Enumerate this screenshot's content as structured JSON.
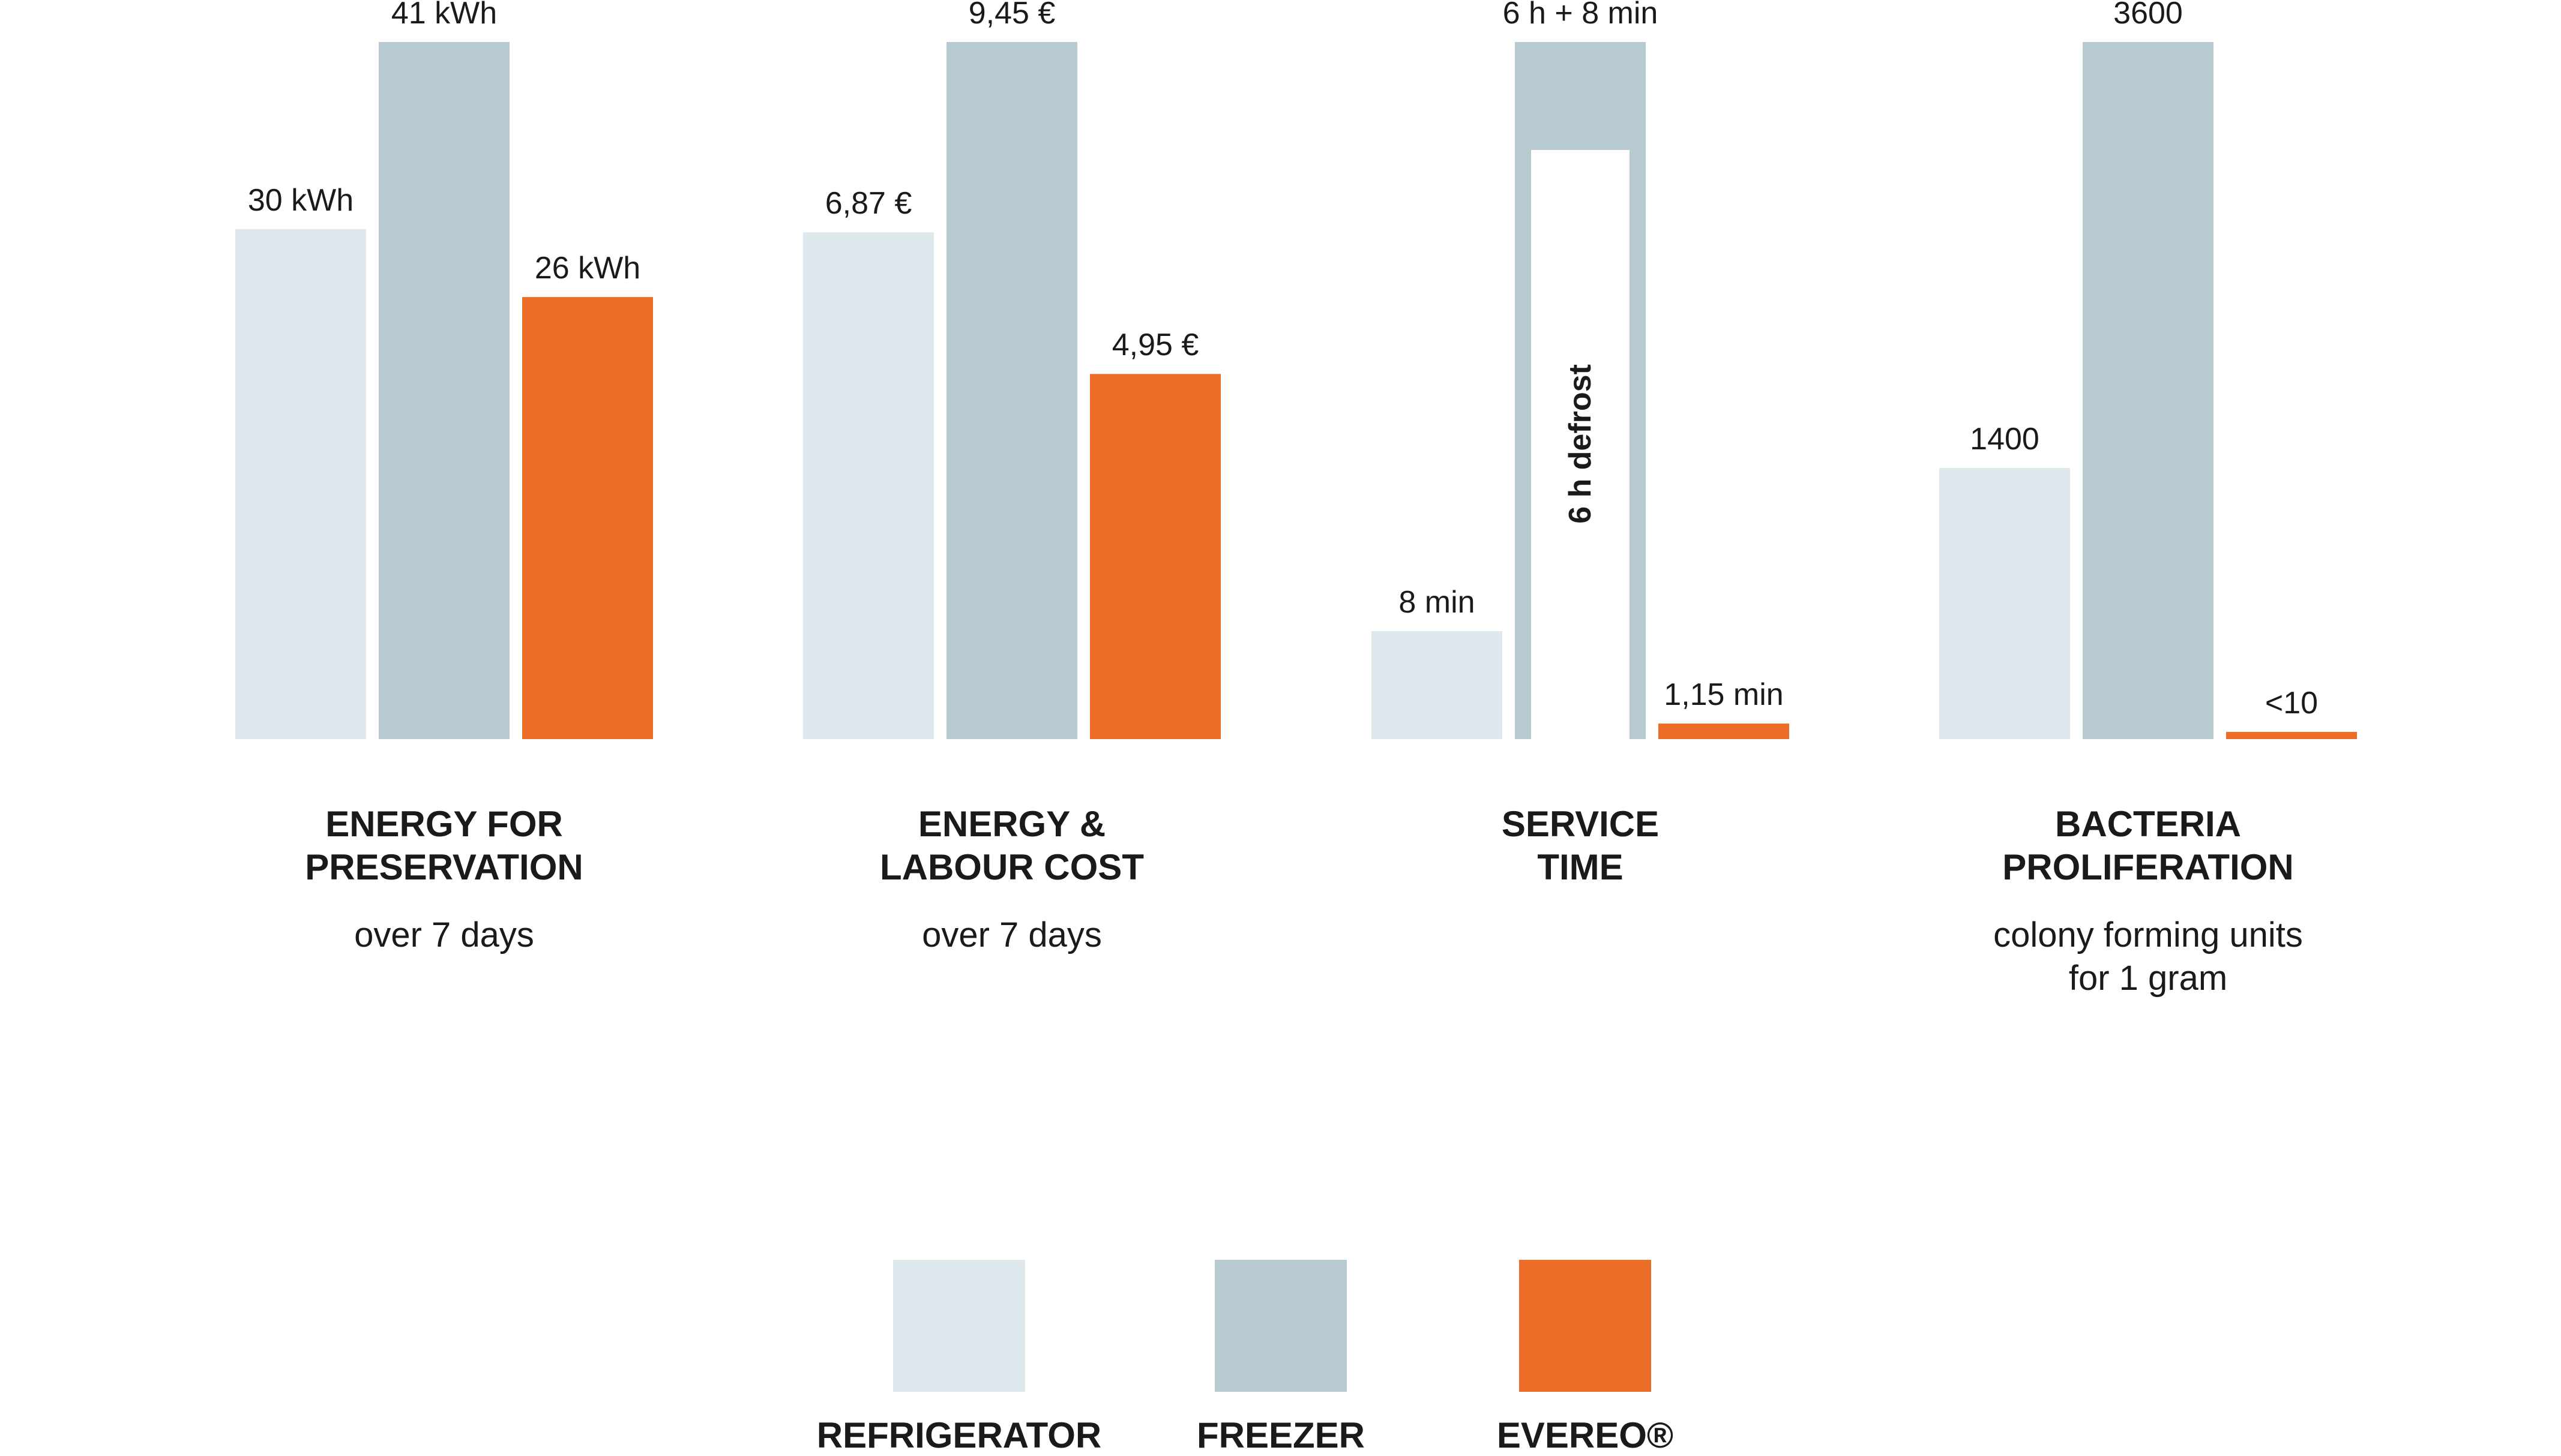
{
  "colors": {
    "refrigerator": "#dfe9ed",
    "freezer": "#b7cad1",
    "evereo": "#ec6d28",
    "background": "#ffffff",
    "text": "#1a1a1a"
  },
  "chart_data": [
    {
      "type": "bar",
      "title": "ENERGY FOR\nPRESERVATION",
      "subtitle": "over 7 days",
      "series_names": [
        "REFRIGERATOR",
        "FREEZER",
        "EVEREO®"
      ],
      "values": [
        30,
        41,
        26
      ],
      "value_labels": [
        "30 kWh",
        "41  kWh",
        "26 kWh"
      ],
      "unit": "kWh"
    },
    {
      "type": "bar",
      "title": "ENERGY &\nLABOUR COST",
      "subtitle": "over 7 days",
      "series_names": [
        "REFRIGERATOR",
        "FREEZER",
        "EVEREO®"
      ],
      "values": [
        6.87,
        9.45,
        4.95
      ],
      "value_labels": [
        "6,87 €",
        "9,45 €",
        "4,95 €"
      ],
      "unit": "€"
    },
    {
      "type": "bar",
      "title": "SERVICE\nTIME",
      "subtitle": "",
      "series_names": [
        "REFRIGERATOR",
        "FREEZER",
        "EVEREO®"
      ],
      "values_min": [
        8,
        368,
        1.15
      ],
      "value_labels": [
        "8 min",
        "6 h + 8 min",
        "1,15 min"
      ],
      "annotation": "6 h defrost",
      "unit": "min"
    },
    {
      "type": "bar",
      "title": "BACTERIA\nPROLIFERATION",
      "subtitle": "colony forming units\nfor 1 gram",
      "series_names": [
        "REFRIGERATOR",
        "FREEZER",
        "EVEREO®"
      ],
      "values": [
        1400,
        3600,
        10
      ],
      "value_labels": [
        "1400",
        "3600",
        "<10"
      ],
      "unit": "CFU/g"
    }
  ],
  "legend": [
    {
      "label": "REFRIGERATOR",
      "color_key": "refrigerator"
    },
    {
      "label": "FREEZER",
      "color_key": "freezer"
    },
    {
      "label": "EVEREO®",
      "color_key": "evereo"
    }
  ]
}
